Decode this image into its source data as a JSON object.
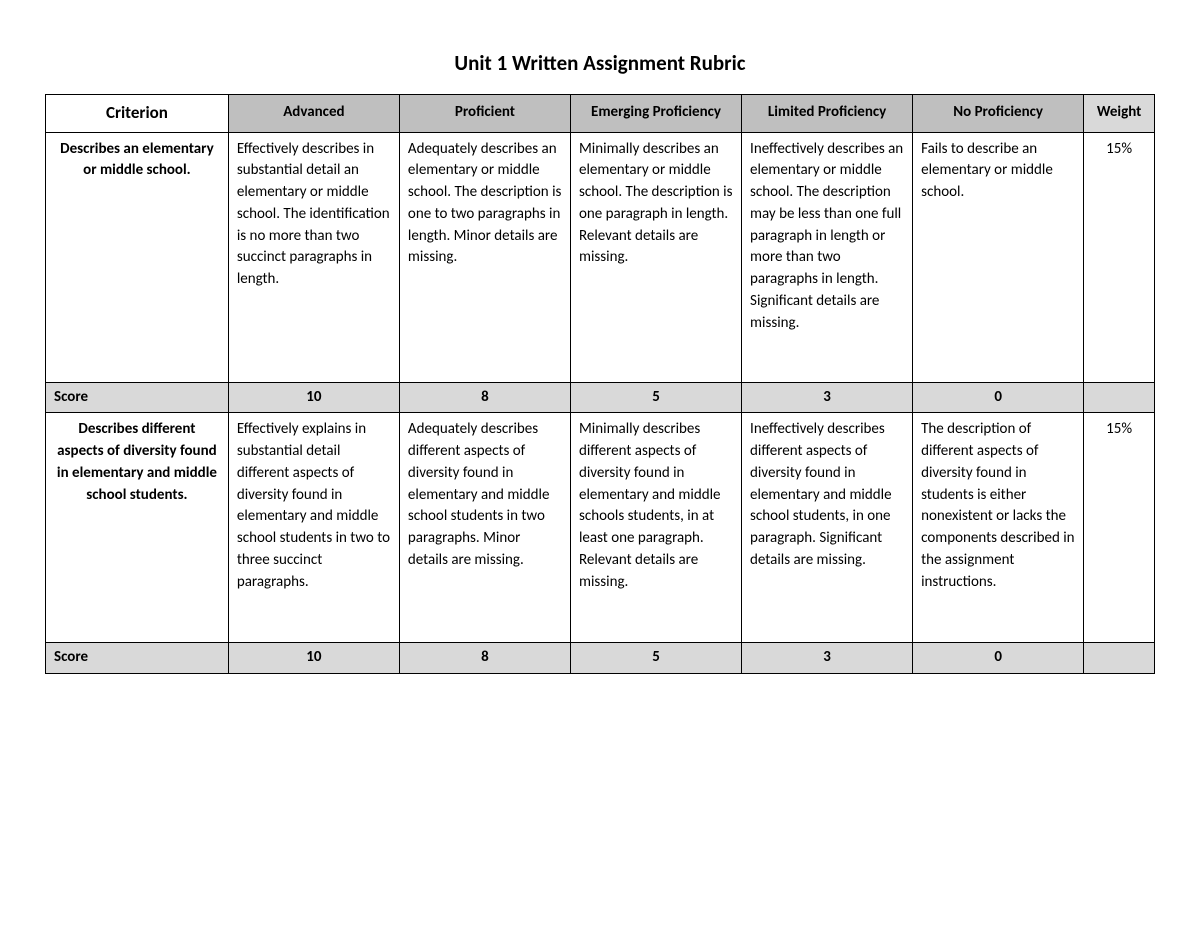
{
  "title": "Unit 1 Written Assignment Rubric",
  "columns": {
    "criterion": "Criterion",
    "advanced": "Advanced",
    "proficient": "Proficient",
    "emerging": "Emerging Proficiency",
    "limited": "Limited Proficiency",
    "none": "No Proficiency",
    "weight": "Weight"
  },
  "rows": [
    {
      "criterion": "Describes an elementary or middle school.",
      "advanced": "Effectively describes in substantial detail an elementary or middle school. The identification is no more than two succinct paragraphs in length.",
      "proficient": "Adequately describes an elementary or middle school. The description is one to two paragraphs in length. Minor details are missing.",
      "emerging": "Minimally describes an elementary or middle school.  The description is one paragraph in length. Relevant details are missing.",
      "limited": "Ineffectively describes an elementary or middle school. The description may be less than one full paragraph in length or more than two paragraphs in length. Significant details are missing.",
      "none": "Fails to describe an elementary or middle school.",
      "weight": "15%",
      "score_label": "Score",
      "scores": {
        "advanced": "10",
        "proficient": "8",
        "emerging": "5",
        "limited": "3",
        "none": "0"
      }
    },
    {
      "criterion": "Describes different aspects of diversity found in elementary and middle school students.",
      "advanced": "Effectively explains in substantial detail different aspects of diversity found in elementary and middle school students in two to three succinct paragraphs.",
      "proficient": "Adequately describes different aspects of diversity found in elementary and middle school students in two paragraphs. Minor details are missing.",
      "emerging": "Minimally describes different aspects of diversity found in elementary and middle schools students, in at least one paragraph. Relevant details are missing.",
      "limited": "Ineffectively describes different aspects of diversity found in elementary and middle school students, in one paragraph. Significant details are missing.",
      "none": "The description of different aspects of diversity found in students is either nonexistent or lacks the components described in the assignment instructions.",
      "weight": "15%",
      "score_label": "Score",
      "scores": {
        "advanced": "10",
        "proficient": "8",
        "emerging": "5",
        "limited": "3",
        "none": "0"
      }
    }
  ],
  "style": {
    "header_bg": "#bfbfbf",
    "weight_head_bg": "#d9d9d9",
    "score_row_bg": "#d9d9d9",
    "border_color": "#000000",
    "text_color": "#000000",
    "background_color": "#ffffff",
    "title_fontsize": 21,
    "header_fontsize": 15,
    "cell_fontsize": 15,
    "column_widths_pct": [
      15.5,
      14.5,
      14.5,
      14.5,
      14.5,
      14.5,
      6
    ]
  }
}
